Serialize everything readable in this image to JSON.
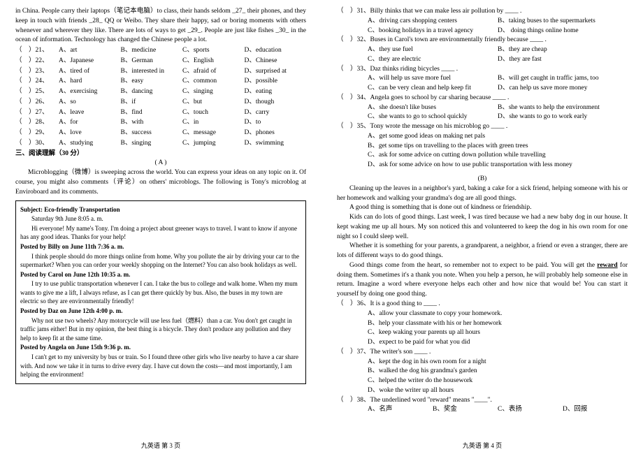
{
  "left": {
    "passage": "in China. People carry their laptops（笔记本电脑）to class, their hands seldom _27_ their phones, and they keep in touch with friends _28_ QQ or Weibo. They share their happy, sad or boring moments with others whenever and wherever they like. There are lots of ways to get _29_. People are just like fishes _30_ in the ocean of information. Technology has changed the Chinese people a lot.",
    "opts": [
      {
        "n": "（　）21、",
        "a": "A、art",
        "b": "B、medicine",
        "c": "C、sports",
        "d": "D、education"
      },
      {
        "n": "（　）22、",
        "a": "A、Japanese",
        "b": "B、German",
        "c": "C、English",
        "d": "D、Chinese"
      },
      {
        "n": "（　）23、",
        "a": "A、tired of",
        "b": "B、interested in",
        "c": "C、afraid of",
        "d": "D、surprised at"
      },
      {
        "n": "（　）24、",
        "a": "A、hard",
        "b": "B、easy",
        "c": "C、common",
        "d": "D、possible"
      },
      {
        "n": "（　）25、",
        "a": "A、exercising",
        "b": "B、dancing",
        "c": "C、singing",
        "d": "D、eating"
      },
      {
        "n": "（　）26、",
        "a": "A、so",
        "b": "B、if",
        "c": "C、but",
        "d": "D、though"
      },
      {
        "n": "（　）27、",
        "a": "A、leave",
        "b": "B、find",
        "c": "C、touch",
        "d": "D、carry"
      },
      {
        "n": "（　）28、",
        "a": "A、for",
        "b": "B、with",
        "c": "C、in",
        "d": "D、to"
      },
      {
        "n": "（　）29、",
        "a": "A、love",
        "b": "B、success",
        "c": "C、message",
        "d": "D、phones"
      },
      {
        "n": "（　）30、",
        "a": "A、studying",
        "b": "B、singing",
        "c": "C、jumping",
        "d": "D、swimming"
      }
    ],
    "sec": "三、阅读理解（30 分）",
    "a_label": "( A )",
    "a_intro": "Microblogging（微博）is sweeping across the world. You can express your ideas on any topic on it. Of course, you might also comments（评论）on others' microblogs. The following is Tony's microblog at Enviroboard and its comments.",
    "box": {
      "subject_h": "Subject: Eco-friendly Transportation",
      "date": "Saturday 9th June 8:05 a. m.",
      "p0": "Hi everyone! My name's Tony. I'm doing a project about greener ways to travel. I want to know if anyone has any good ideas. Thanks for your help!",
      "h1": "Posted by Billy on June 11th 7:36 a. m.",
      "p1": "I think people should do more things online from home. Why you pollute the air by driving your car to the supermarket? When you can order your weekly shopping on the Internet? You can also book holidays as well.",
      "h2": "Posted by Carol on June 12th 10:35 a. m.",
      "p2": "I try to use public transportation whenever I can. I take the bus to college and walk home. When my mum wants to give me a lift, I always refuse, as I can get there quickly by bus. Also, the buses in my town are electric so they are environmentally friendly!",
      "h3": "Posted by Daz on June 12th 4:00 p. m.",
      "p3": "Why not use two wheels? Any motorcycle will use less fuel（燃料）than a car. You don't get caught in traffic jams either! But in my opinion, the best thing is a bicycle. They don't produce any pollution and they help to keep fit at the same time.",
      "h4": "Posted by Angela on June 15th 9:36 p. m.",
      "p4": "I can't get to my university by bus or train. So I found three other girls who live nearby to have a car share with. And now we take it in turns to drive every day. I have cut down the costs—and most importantly, I am helping the environment!"
    },
    "footer": "九英语 第 3 页"
  },
  "right": {
    "q31": {
      "q": "（　）31、Billy thinks that we can make less air pollution by ____ .",
      "a": "A、driving cars shopping centers",
      "b": "B、taking buses to the supermarkets",
      "c": "C、booking holidays in a travel agency",
      "d": "D、 doing things online home"
    },
    "q32": {
      "q": "（　）32、Buses in Carol's town are environmentally friendly because ____ .",
      "a": "A、they use fuel",
      "b": "B、they are cheap",
      "c": "C、they are electric",
      "d": "D、they are fast"
    },
    "q33": {
      "q": "（　）33、Daz thinks riding bicycles ____ .",
      "a": "A、will help us save more fuel",
      "b": "B、will get caught in traffic jams, too",
      "c": "C、can be very clean and help keep fit",
      "d": "D、can help us save more money"
    },
    "q34": {
      "q": "（　）34、Angela goes to school by car sharing because ____ .",
      "a": "A、she doesn't like buses",
      "b": "B、she wants to help the environment",
      "c": "C、she wants to go to school quickly",
      "d": "D、she wants to go to work early"
    },
    "q35": {
      "q": "（　）35、Tony wrote the message on his microblog go ____ .",
      "a": "A、get some good ideas on making net pals",
      "b": "B、get some tips on travelling to the places with green trees",
      "c": "C、ask for some advice on cutting down pollution while travelling",
      "d": "D、ask for some advice on how to use public transportation with less money"
    },
    "b_label": "(B)",
    "b_p1": "Cleaning up the leaves in a neighbor's yard, baking a cake for a sick friend, helping someone with his or her homework and walking your grandma's dog are all good things.",
    "b_p1b": "A good thing is something that is done out of kindness or friendship.",
    "b_p2": "Kids can do lots of good things. Last week, I was tired because we had a new baby dog in our house. It kept waking me up all hours. My son noticed this and volunteered to keep the dog in his own room for one night so I could sleep well.",
    "b_p3": "Whether it is something for your parents, a grandparent, a neighbor, a friend or even a stranger, there are lots of different ways to do good things.",
    "b_p4a": "Good things come from the heart, so remember not to expect to be paid. You will get the ",
    "b_p4b": " for doing them. Sometimes it's a thank you note. When you help a person, he will probably help someone else in return. Imagine a word where everyone helps each other and how nice that would be! You can start it yourself by doing one good thing.",
    "reward": "reward",
    "q36": {
      "q": "（　）36、It is a good thing to ____ .",
      "a": "A、allow your classmate to copy your homework.",
      "b": "B、help your classmate with his or her homework",
      "c": "C、keep waking your parents up all hours",
      "d": "D、expect to be paid for what you did"
    },
    "q37": {
      "q": "（　）37、The writer's son ____ .",
      "a": "A、kept the dog in his own room for a night",
      "b": "B、walked the dog his grandma's garden",
      "c": "C、helped the writer do the housework",
      "d": "D、woke the writer up all hours"
    },
    "q38": {
      "q": "（　）38、The underlined word \"reward\" means \"____\".",
      "a": "A、名声",
      "b": "B、奖金",
      "c": "C、表扬",
      "d": "D、回报"
    },
    "footer": "九英语 第 4 页"
  }
}
